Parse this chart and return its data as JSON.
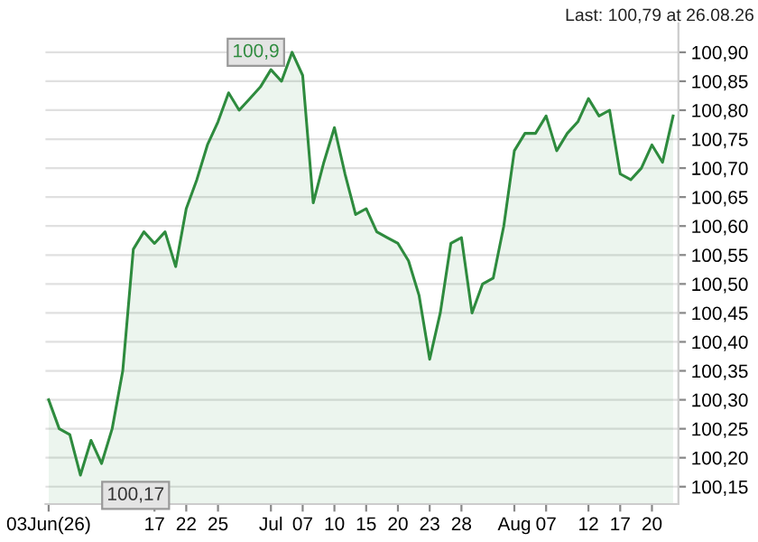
{
  "chart_data": {
    "type": "area",
    "categories": [
      "03Jun(26)",
      null,
      null,
      null,
      null,
      null,
      null,
      null,
      null,
      null,
      "17",
      null,
      null,
      "22",
      null,
      null,
      "25",
      null,
      null,
      null,
      null,
      "Jul",
      null,
      null,
      "07",
      null,
      null,
      "10",
      null,
      null,
      "15",
      null,
      null,
      "20",
      null,
      null,
      "23",
      null,
      null,
      "28",
      null,
      null,
      null,
      null,
      "Aug",
      null,
      null,
      "07",
      null,
      null,
      null,
      "12",
      null,
      null,
      "17",
      null,
      null,
      "20",
      null,
      null
    ],
    "series": [
      {
        "color": "#2e8b3e",
        "values": [
          100.3,
          100.25,
          100.24,
          100.17,
          100.23,
          100.19,
          100.25,
          100.35,
          100.56,
          100.59,
          100.57,
          100.59,
          100.53,
          100.63,
          100.68,
          100.74,
          100.78,
          100.83,
          100.8,
          100.82,
          100.84,
          100.87,
          100.85,
          100.9,
          100.86,
          100.64,
          100.71,
          100.77,
          100.69,
          100.62,
          100.63,
          100.59,
          100.58,
          100.57,
          100.54,
          100.48,
          100.37,
          100.45,
          100.57,
          100.58,
          100.45,
          100.5,
          100.51,
          100.6,
          100.73,
          100.76,
          100.76,
          100.79,
          100.73,
          100.76,
          100.78,
          100.82,
          100.79,
          100.8,
          100.69,
          100.68,
          100.7,
          100.74,
          100.71,
          100.79
        ]
      }
    ],
    "ylim": [
      100.12,
      100.95
    ],
    "yticks": [
      {
        "value": 100.15,
        "label": "100,15"
      },
      {
        "value": 100.2,
        "label": "100,20"
      },
      {
        "value": 100.25,
        "label": "100,25"
      },
      {
        "value": 100.3,
        "label": "100,30"
      },
      {
        "value": 100.35,
        "label": "100,35"
      },
      {
        "value": 100.4,
        "label": "100,40"
      },
      {
        "value": 100.45,
        "label": "100,45"
      },
      {
        "value": 100.5,
        "label": "100,50"
      },
      {
        "value": 100.55,
        "label": "100,55"
      },
      {
        "value": 100.6,
        "label": "100,60"
      },
      {
        "value": 100.65,
        "label": "100,65"
      },
      {
        "value": 100.7,
        "label": "100,70"
      },
      {
        "value": 100.75,
        "label": "100,75"
      },
      {
        "value": 100.8,
        "label": "100,80"
      },
      {
        "value": 100.85,
        "label": "100,85"
      },
      {
        "value": 100.9,
        "label": "100,90"
      }
    ],
    "grid": "y",
    "annotations": [
      "Last: 100,79 at 26.08.26",
      "100,9",
      "100,17"
    ]
  }
}
